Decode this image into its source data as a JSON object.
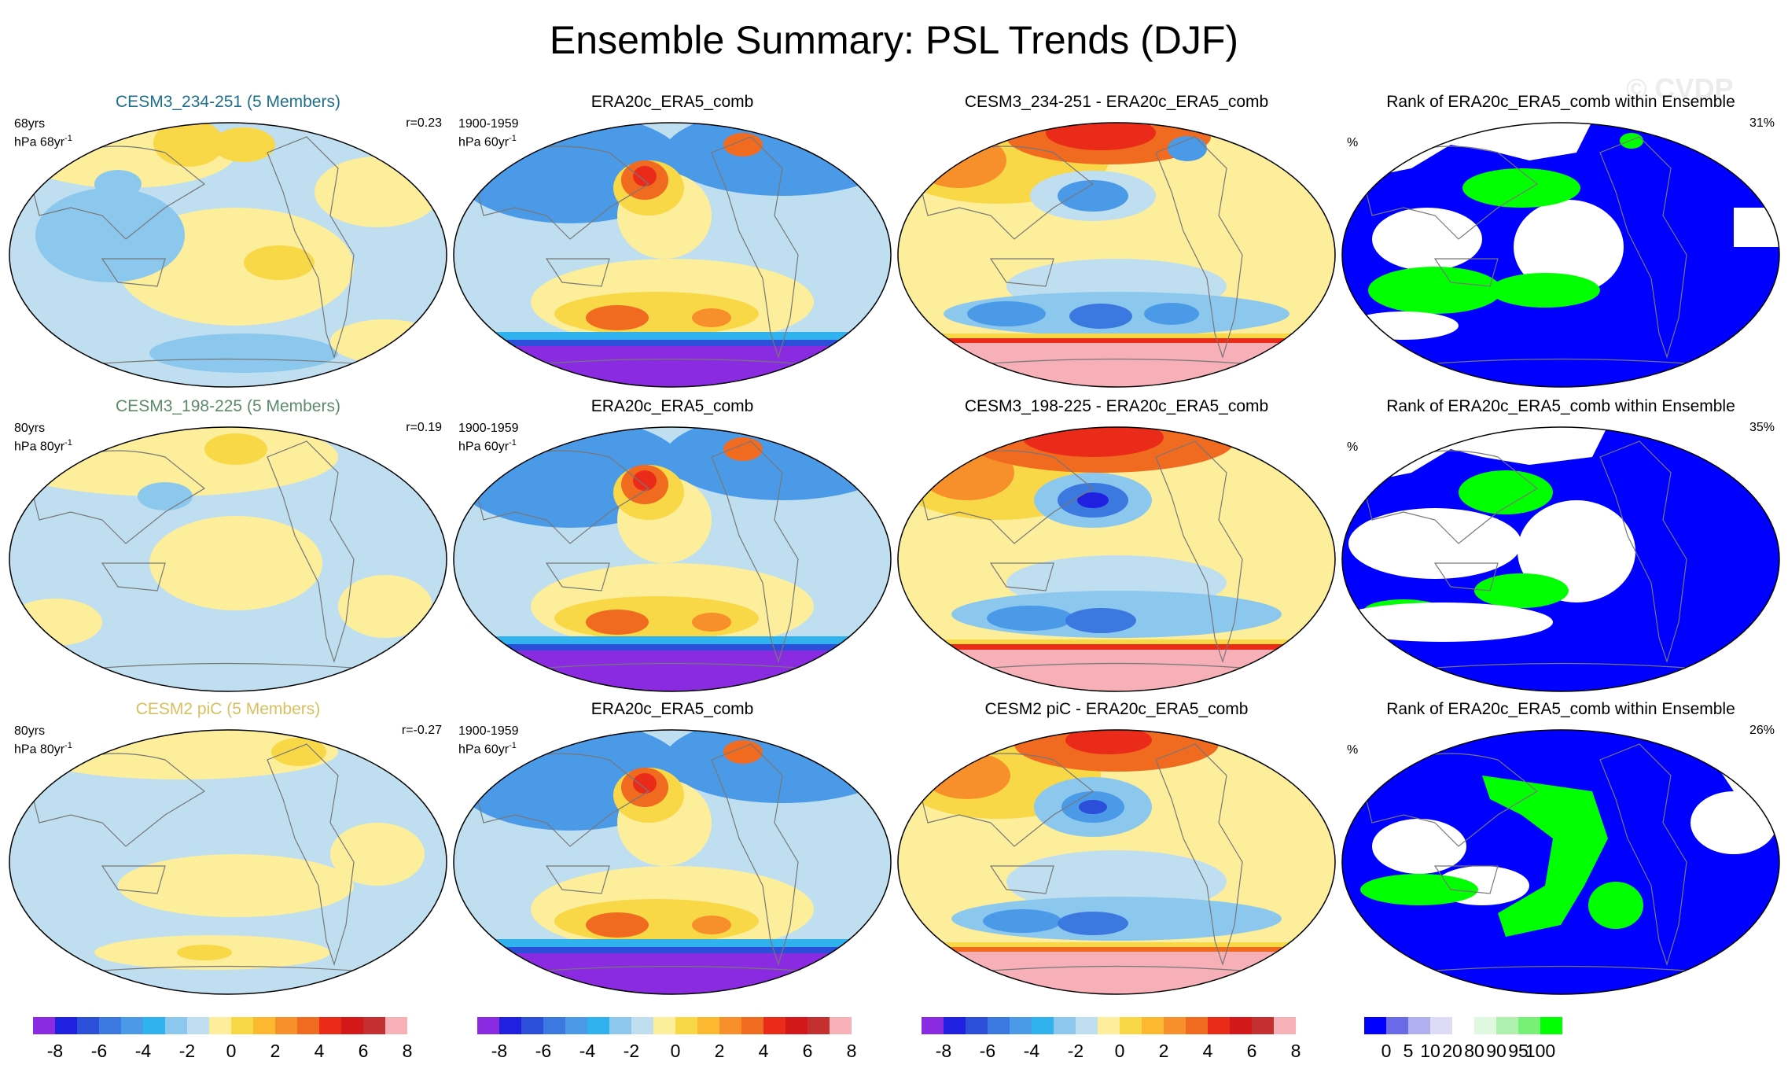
{
  "title": "Ensemble Summary: PSL Trends (DJF)",
  "watermark": "© CVDP",
  "colors": {
    "title_cesm3a": "#1e6f8c",
    "title_cesm3b": "#5c8a6a",
    "title_cesm2": "#d8c060",
    "ocean_pos": "#fcee9a",
    "ocean_neg": "#bfdff0",
    "rank_low": "#0000ff",
    "rank_mid": "#ffffff",
    "rank_high": "#00ff00"
  },
  "rows": [
    {
      "ens_title": "CESM3_234-251 (5 Members)",
      "ens_yrs": "68yrs",
      "ens_units": "hPa 68yr",
      "ens_units_exp": "-1",
      "ens_r": "r=0.23",
      "obs_title": "ERA20c_ERA5_comb",
      "obs_period": "1900-1959",
      "obs_units": "hPa 60yr",
      "obs_units_exp": "-1",
      "diff_title": "CESM3_234-251 - ERA20c_ERA5_comb",
      "rank_title": "Rank of ERA20c_ERA5_comb within Ensemble",
      "rank_units": "%",
      "rank_pct": "31%"
    },
    {
      "ens_title": "CESM3_198-225 (5 Members)",
      "ens_yrs": "80yrs",
      "ens_units": "hPa 80yr",
      "ens_units_exp": "-1",
      "ens_r": "r=0.19",
      "obs_title": "ERA20c_ERA5_comb",
      "obs_period": "1900-1959",
      "obs_units": "hPa 60yr",
      "obs_units_exp": "-1",
      "diff_title": "CESM3_198-225 - ERA20c_ERA5_comb",
      "rank_title": "Rank of ERA20c_ERA5_comb within Ensemble",
      "rank_units": "%",
      "rank_pct": "35%"
    },
    {
      "ens_title": "CESM2 piC (5 Members)",
      "ens_yrs": "80yrs",
      "ens_units": "hPa 80yr",
      "ens_units_exp": "-1",
      "ens_r": "r=-0.27",
      "obs_title": "ERA20c_ERA5_comb",
      "obs_period": "1900-1959",
      "obs_units": "hPa 60yr",
      "obs_units_exp": "-1",
      "diff_title": "CESM2 piC - ERA20c_ERA5_comb",
      "rank_title": "Rank of ERA20c_ERA5_comb within Ensemble",
      "rank_units": "%",
      "rank_pct": "26%"
    }
  ],
  "chart_data": {
    "type": "heatmap",
    "title": "Ensemble Summary: PSL Trends (DJF)",
    "projection": "Robinson (Pacific-centered)",
    "trend_colorbar": {
      "units": "hPa",
      "levels": [
        -8,
        -7,
        -6,
        -5,
        -4,
        -3,
        -2,
        -1,
        0,
        1,
        2,
        3,
        4,
        5,
        6,
        7,
        8
      ],
      "tick_labels": [
        "-8",
        "-6",
        "-4",
        "-2",
        "0",
        "2",
        "4",
        "6",
        "8"
      ],
      "colors": [
        "#8a2be2",
        "#2020e0",
        "#2b4fd8",
        "#3b78e0",
        "#4a9ae8",
        "#2fb2ee",
        "#8cc8ee",
        "#bfdff0",
        "#fcee9a",
        "#f8d847",
        "#fbb830",
        "#f7902a",
        "#f06a20",
        "#ea2b1a",
        "#d21818",
        "#c43030",
        "#f7b0b8"
      ]
    },
    "rank_colorbar": {
      "units": "%",
      "levels": [
        0,
        5,
        10,
        20,
        80,
        90,
        95,
        100
      ],
      "tick_labels": [
        "0",
        "5",
        "10",
        "20",
        "80",
        "90",
        "95",
        "100"
      ],
      "colors": [
        "#0000ff",
        "#6a6ae8",
        "#b0b0f0",
        "#dcdcf6",
        "#ffffff",
        "#e0f8e0",
        "#aef0ae",
        "#78f078",
        "#00ff00"
      ]
    },
    "panels": [
      {
        "row": 1,
        "col": 1,
        "kind": "ensemble_mean_trend",
        "label": "CESM3_234-251 (5 Members)",
        "pattern_correlation": 0.23,
        "period_years": 68
      },
      {
        "row": 1,
        "col": 2,
        "kind": "observed_trend",
        "label": "ERA20c_ERA5_comb",
        "period": "1900-1959"
      },
      {
        "row": 1,
        "col": 3,
        "kind": "difference",
        "label": "CESM3_234-251 - ERA20c_ERA5_comb"
      },
      {
        "row": 1,
        "col": 4,
        "kind": "rank",
        "label": "Rank of ERA20c_ERA5_comb within Ensemble",
        "area_pct": 31
      },
      {
        "row": 2,
        "col": 1,
        "kind": "ensemble_mean_trend",
        "label": "CESM3_198-225 (5 Members)",
        "pattern_correlation": 0.19,
        "period_years": 80
      },
      {
        "row": 2,
        "col": 2,
        "kind": "observed_trend",
        "label": "ERA20c_ERA5_comb",
        "period": "1900-1959"
      },
      {
        "row": 2,
        "col": 3,
        "kind": "difference",
        "label": "CESM3_198-225 - ERA20c_ERA5_comb"
      },
      {
        "row": 2,
        "col": 4,
        "kind": "rank",
        "label": "Rank of ERA20c_ERA5_comb within Ensemble",
        "area_pct": 35
      },
      {
        "row": 3,
        "col": 1,
        "kind": "ensemble_mean_trend",
        "label": "CESM2 piC (5 Members)",
        "pattern_correlation": -0.27,
        "period_years": 80
      },
      {
        "row": 3,
        "col": 2,
        "kind": "observed_trend",
        "label": "ERA20c_ERA5_comb",
        "period": "1900-1959"
      },
      {
        "row": 3,
        "col": 3,
        "kind": "difference",
        "label": "CESM2 piC - ERA20c_ERA5_comb"
      },
      {
        "row": 3,
        "col": 4,
        "kind": "rank",
        "label": "Rank of ERA20c_ERA5_comb within Ensemble",
        "area_pct": 26
      }
    ]
  }
}
